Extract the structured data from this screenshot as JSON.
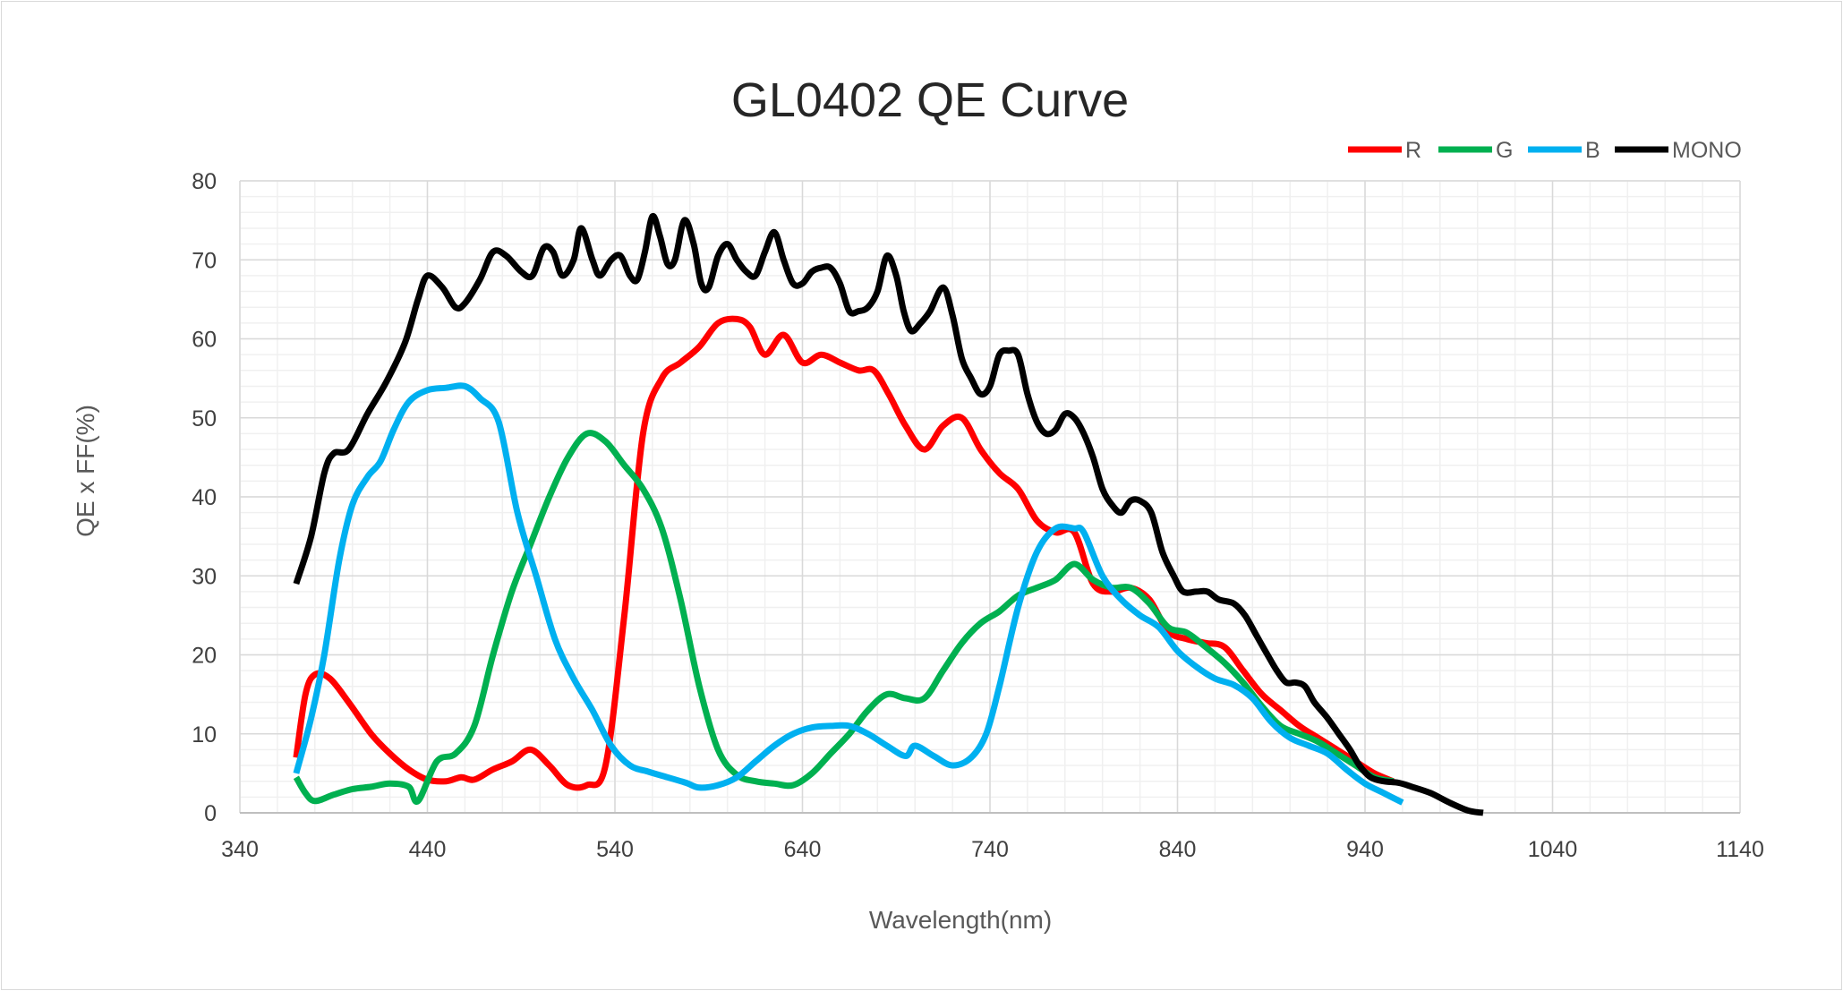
{
  "chart_data": {
    "type": "line",
    "title": "GL0402 QE Curve",
    "xlabel": "Wavelength(nm)",
    "ylabel": "QE x FF(%)",
    "xlim": [
      340,
      1140
    ],
    "ylim": [
      0,
      80
    ],
    "x_ticks": [
      340,
      440,
      540,
      640,
      740,
      840,
      940,
      1040,
      1140
    ],
    "y_ticks": [
      0,
      10,
      20,
      30,
      40,
      50,
      60,
      70,
      80
    ],
    "grid": true,
    "legend_position": "top-right",
    "series": [
      {
        "name": "R",
        "color": "#ff0000",
        "points": [
          [
            370,
            7
          ],
          [
            375,
            15
          ],
          [
            380,
            17.5
          ],
          [
            388,
            17
          ],
          [
            398,
            14
          ],
          [
            410,
            10
          ],
          [
            420,
            7.5
          ],
          [
            430,
            5.5
          ],
          [
            440,
            4.2
          ],
          [
            450,
            4
          ],
          [
            458,
            4.5
          ],
          [
            465,
            4.2
          ],
          [
            475,
            5.5
          ],
          [
            485,
            6.5
          ],
          [
            495,
            8
          ],
          [
            505,
            6
          ],
          [
            515,
            3.5
          ],
          [
            525,
            3.5
          ],
          [
            535,
            6
          ],
          [
            545,
            25
          ],
          [
            555,
            48
          ],
          [
            565,
            55
          ],
          [
            575,
            57
          ],
          [
            585,
            59
          ],
          [
            595,
            62
          ],
          [
            605,
            62.5
          ],
          [
            612,
            61.5
          ],
          [
            620,
            58
          ],
          [
            630,
            60.5
          ],
          [
            640,
            57
          ],
          [
            650,
            58
          ],
          [
            660,
            57
          ],
          [
            670,
            56
          ],
          [
            678,
            56
          ],
          [
            686,
            53
          ],
          [
            695,
            49
          ],
          [
            705,
            46
          ],
          [
            715,
            49
          ],
          [
            725,
            50
          ],
          [
            735,
            46
          ],
          [
            745,
            43
          ],
          [
            755,
            41
          ],
          [
            765,
            37
          ],
          [
            775,
            35.5
          ],
          [
            785,
            35.5
          ],
          [
            795,
            29
          ],
          [
            805,
            28
          ],
          [
            815,
            28.5
          ],
          [
            825,
            27
          ],
          [
            835,
            23
          ],
          [
            845,
            22
          ],
          [
            855,
            21.5
          ],
          [
            865,
            21
          ],
          [
            875,
            18
          ],
          [
            885,
            15
          ],
          [
            895,
            13
          ],
          [
            905,
            11
          ],
          [
            915,
            9.5
          ],
          [
            925,
            8
          ],
          [
            935,
            6.5
          ],
          [
            945,
            5
          ],
          [
            955,
            4
          ]
        ]
      },
      {
        "name": "G",
        "color": "#00b050",
        "points": [
          [
            370,
            4.5
          ],
          [
            375,
            2.5
          ],
          [
            380,
            1.5
          ],
          [
            390,
            2.3
          ],
          [
            400,
            3
          ],
          [
            410,
            3.3
          ],
          [
            420,
            3.7
          ],
          [
            430,
            3.3
          ],
          [
            435,
            1.5
          ],
          [
            445,
            6.5
          ],
          [
            455,
            7.5
          ],
          [
            465,
            11
          ],
          [
            475,
            20
          ],
          [
            485,
            28
          ],
          [
            495,
            34
          ],
          [
            505,
            40
          ],
          [
            515,
            45
          ],
          [
            525,
            48
          ],
          [
            535,
            47
          ],
          [
            545,
            44
          ],
          [
            555,
            41
          ],
          [
            565,
            36
          ],
          [
            575,
            27
          ],
          [
            585,
            16
          ],
          [
            595,
            8
          ],
          [
            605,
            4.8
          ],
          [
            615,
            4
          ],
          [
            625,
            3.7
          ],
          [
            635,
            3.5
          ],
          [
            645,
            5
          ],
          [
            655,
            7.5
          ],
          [
            665,
            10
          ],
          [
            675,
            13
          ],
          [
            685,
            15
          ],
          [
            695,
            14.5
          ],
          [
            705,
            14.5
          ],
          [
            715,
            18
          ],
          [
            725,
            21.5
          ],
          [
            735,
            24
          ],
          [
            745,
            25.5
          ],
          [
            755,
            27.5
          ],
          [
            765,
            28.5
          ],
          [
            775,
            29.5
          ],
          [
            785,
            31.5
          ],
          [
            795,
            29.5
          ],
          [
            805,
            28.5
          ],
          [
            815,
            28.5
          ],
          [
            825,
            26.5
          ],
          [
            835,
            23.5
          ],
          [
            845,
            22.8
          ],
          [
            855,
            21
          ],
          [
            865,
            19
          ],
          [
            875,
            16.5
          ],
          [
            885,
            13.5
          ],
          [
            895,
            11
          ],
          [
            905,
            10
          ],
          [
            915,
            9
          ],
          [
            925,
            7.5
          ],
          [
            935,
            6
          ],
          [
            945,
            4.5
          ],
          [
            955,
            4
          ]
        ]
      },
      {
        "name": "B",
        "color": "#00b0f0",
        "points": [
          [
            370,
            5
          ],
          [
            378,
            12
          ],
          [
            385,
            20
          ],
          [
            393,
            32
          ],
          [
            400,
            39
          ],
          [
            408,
            42.5
          ],
          [
            415,
            44.5
          ],
          [
            422,
            48.5
          ],
          [
            430,
            52
          ],
          [
            440,
            53.5
          ],
          [
            450,
            53.8
          ],
          [
            460,
            54
          ],
          [
            468,
            52.5
          ],
          [
            478,
            49.5
          ],
          [
            488,
            38
          ],
          [
            498,
            30
          ],
          [
            508,
            22
          ],
          [
            518,
            17
          ],
          [
            528,
            13
          ],
          [
            538,
            8.5
          ],
          [
            548,
            6
          ],
          [
            558,
            5.2
          ],
          [
            568,
            4.5
          ],
          [
            578,
            3.8
          ],
          [
            585,
            3.2
          ],
          [
            595,
            3.5
          ],
          [
            605,
            4.5
          ],
          [
            615,
            6.5
          ],
          [
            625,
            8.5
          ],
          [
            635,
            10
          ],
          [
            645,
            10.8
          ],
          [
            655,
            11
          ],
          [
            665,
            11
          ],
          [
            675,
            10
          ],
          [
            685,
            8.5
          ],
          [
            695,
            7.2
          ],
          [
            700,
            8.5
          ],
          [
            710,
            7.2
          ],
          [
            720,
            6
          ],
          [
            730,
            7
          ],
          [
            738,
            10
          ],
          [
            745,
            16
          ],
          [
            755,
            26
          ],
          [
            765,
            33
          ],
          [
            775,
            36
          ],
          [
            785,
            36
          ],
          [
            790,
            35.5
          ],
          [
            800,
            30
          ],
          [
            810,
            27
          ],
          [
            820,
            25
          ],
          [
            830,
            23.5
          ],
          [
            840,
            20.5
          ],
          [
            850,
            18.5
          ],
          [
            860,
            17
          ],
          [
            870,
            16.2
          ],
          [
            880,
            14.5
          ],
          [
            890,
            11.5
          ],
          [
            900,
            9.5
          ],
          [
            910,
            8.5
          ],
          [
            920,
            7.5
          ],
          [
            930,
            5.5
          ],
          [
            940,
            3.7
          ],
          [
            950,
            2.5
          ],
          [
            960,
            1.3
          ]
        ]
      },
      {
        "name": "MONO",
        "color": "#000000",
        "points": [
          [
            370,
            29
          ],
          [
            378,
            35
          ],
          [
            385,
            43
          ],
          [
            390,
            45.5
          ],
          [
            398,
            46
          ],
          [
            408,
            50.5
          ],
          [
            418,
            54.5
          ],
          [
            428,
            59.5
          ],
          [
            435,
            65
          ],
          [
            440,
            68
          ],
          [
            448,
            66.5
          ],
          [
            455,
            64
          ],
          [
            460,
            64.5
          ],
          [
            468,
            67.5
          ],
          [
            475,
            71
          ],
          [
            482,
            70.5
          ],
          [
            490,
            68.5
          ],
          [
            496,
            68
          ],
          [
            502,
            71.5
          ],
          [
            507,
            71
          ],
          [
            512,
            68
          ],
          [
            518,
            70
          ],
          [
            522,
            74
          ],
          [
            528,
            70
          ],
          [
            532,
            68
          ],
          [
            538,
            70
          ],
          [
            543,
            70.5
          ],
          [
            548,
            68
          ],
          [
            552,
            67.5
          ],
          [
            556,
            71
          ],
          [
            560,
            75.5
          ],
          [
            564,
            73
          ],
          [
            568,
            69.5
          ],
          [
            572,
            70
          ],
          [
            577,
            75
          ],
          [
            582,
            72
          ],
          [
            586,
            67
          ],
          [
            590,
            66.5
          ],
          [
            595,
            70.5
          ],
          [
            600,
            72
          ],
          [
            605,
            70
          ],
          [
            610,
            68.5
          ],
          [
            615,
            68
          ],
          [
            620,
            71
          ],
          [
            625,
            73.5
          ],
          [
            630,
            70
          ],
          [
            635,
            67
          ],
          [
            640,
            67
          ],
          [
            645,
            68.5
          ],
          [
            650,
            69
          ],
          [
            655,
            69
          ],
          [
            660,
            67
          ],
          [
            665,
            63.5
          ],
          [
            670,
            63.5
          ],
          [
            675,
            64
          ],
          [
            680,
            66
          ],
          [
            685,
            70.5
          ],
          [
            690,
            68
          ],
          [
            694,
            63.5
          ],
          [
            698,
            61
          ],
          [
            703,
            62
          ],
          [
            708,
            63.5
          ],
          [
            715,
            66.5
          ],
          [
            720,
            63
          ],
          [
            725,
            57.5
          ],
          [
            730,
            55
          ],
          [
            735,
            53
          ],
          [
            740,
            54
          ],
          [
            745,
            58
          ],
          [
            750,
            58.5
          ],
          [
            755,
            58
          ],
          [
            760,
            53
          ],
          [
            765,
            49.5
          ],
          [
            770,
            48
          ],
          [
            775,
            48.5
          ],
          [
            780,
            50.5
          ],
          [
            785,
            50
          ],
          [
            790,
            48
          ],
          [
            795,
            45
          ],
          [
            800,
            41
          ],
          [
            805,
            39
          ],
          [
            810,
            38
          ],
          [
            815,
            39.5
          ],
          [
            820,
            39.5
          ],
          [
            826,
            38
          ],
          [
            832,
            33
          ],
          [
            838,
            30
          ],
          [
            843,
            28
          ],
          [
            850,
            28
          ],
          [
            856,
            28
          ],
          [
            862,
            27
          ],
          [
            870,
            26.5
          ],
          [
            876,
            25
          ],
          [
            882,
            22.5
          ],
          [
            888,
            20
          ],
          [
            893,
            18
          ],
          [
            898,
            16.5
          ],
          [
            903,
            16.5
          ],
          [
            908,
            16
          ],
          [
            913,
            14
          ],
          [
            920,
            12
          ],
          [
            926,
            10
          ],
          [
            932,
            8
          ],
          [
            937,
            6
          ],
          [
            943,
            4.5
          ],
          [
            950,
            4
          ],
          [
            958,
            3.8
          ],
          [
            965,
            3.3
          ],
          [
            975,
            2.5
          ],
          [
            985,
            1.3
          ],
          [
            995,
            0.3
          ],
          [
            1003,
            0
          ]
        ]
      }
    ]
  }
}
